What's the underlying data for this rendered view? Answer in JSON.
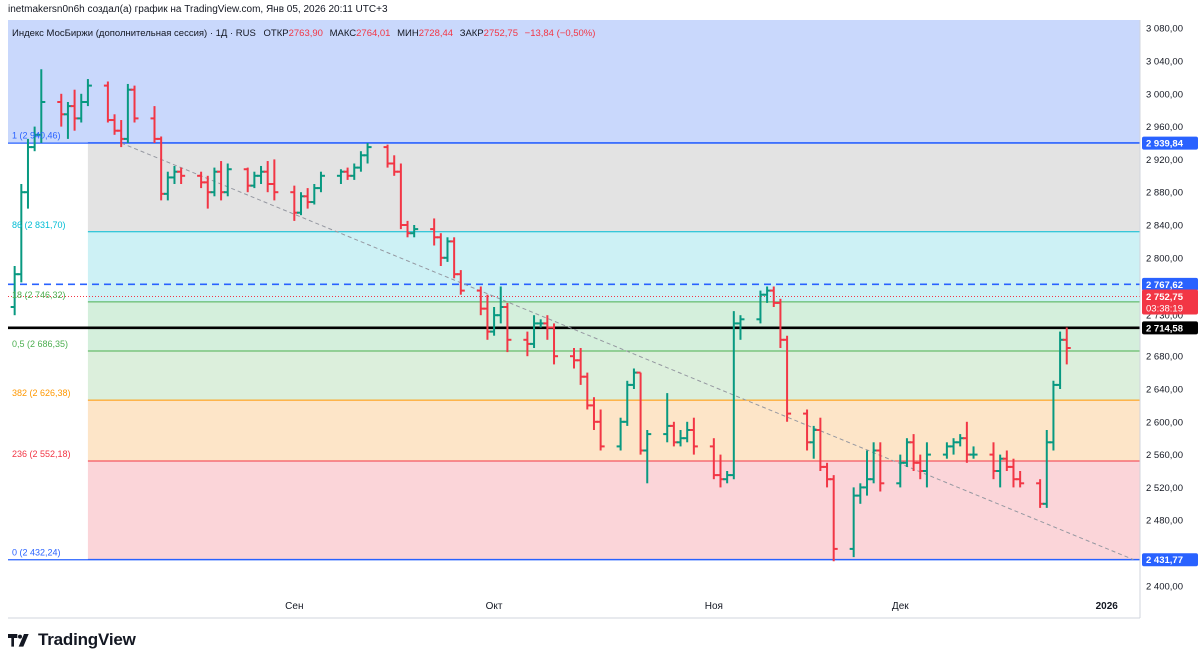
{
  "header": {
    "text": "inetmakersn0n6h создал(а) график на TradingView.com, Янв 05, 2026 20:11 UTC+3"
  },
  "footer": {
    "brand": "TradingView"
  },
  "chart_data": {
    "type": "ohlc",
    "legend": {
      "symbol": "Индекс МосБиржи (дополнительная сессия) · 1Д · RUS",
      "o_label": "ОТКР",
      "o": "2763,90",
      "h_label": "МАКС",
      "h": "2764,01",
      "l_label": "МИН",
      "l": "2728,44",
      "c_label": "ЗАКР",
      "c": "2752,75",
      "change": "−13,84 (−0,50%)"
    },
    "ylim": [
      2390,
      3090
    ],
    "yticks": [
      {
        "v": 3080,
        "label": "3 080,00"
      },
      {
        "v": 3040,
        "label": "3 040,00"
      },
      {
        "v": 3000,
        "label": "3 000,00"
      },
      {
        "v": 2960,
        "label": "2 960,00"
      },
      {
        "v": 2920,
        "label": "2 920,00"
      },
      {
        "v": 2880,
        "label": "2 880,00"
      },
      {
        "v": 2840,
        "label": "2 840,00"
      },
      {
        "v": 2800,
        "label": "2 800,00"
      },
      {
        "v": 2680,
        "label": "2 680,00"
      },
      {
        "v": 2640,
        "label": "2 640,00"
      },
      {
        "v": 2600,
        "label": "2 600,00"
      },
      {
        "v": 2560,
        "label": "2 560,00"
      },
      {
        "v": 2520,
        "label": "2 520,00"
      },
      {
        "v": 2480,
        "label": "2 480,00"
      },
      {
        "v": 2400,
        "label": "2 400,00"
      }
    ],
    "xticks": [
      {
        "date": "2025-09-01",
        "label": "Сен"
      },
      {
        "date": "2025-10-01",
        "label": "Окт"
      },
      {
        "date": "2025-11-03",
        "label": "Ноя"
      },
      {
        "date": "2025-12-01",
        "label": "Дек"
      },
      {
        "date": "2026-01-01",
        "label": "2026"
      }
    ],
    "fib_levels": [
      {
        "ratio": "1",
        "price": 2940.46,
        "label": "1 (2 940,46)",
        "color": "#2962ff",
        "fill": "#c9d8fc"
      },
      {
        "ratio": "0.786",
        "price": 2831.7,
        "label": "86 (2 831,70)",
        "color": "#00bcd4",
        "fill": "#e3e3e3"
      },
      {
        "ratio": "0.618",
        "price": 2746.32,
        "label": "18 (2 746,32)",
        "color": "#4caf50",
        "fill": "#cdf1f5"
      },
      {
        "ratio": "0.5",
        "price": 2686.35,
        "label": "0,5 (2 686,35)",
        "color": "#4caf50",
        "fill": "#d4efdc"
      },
      {
        "ratio": "0.382",
        "price": 2626.38,
        "label": "382 (2 626,38)",
        "color": "#ff9800",
        "fill": "#dcefdc"
      },
      {
        "ratio": "0.236",
        "price": 2552.18,
        "label": "236 (2 552,18)",
        "color": "#f23645",
        "fill": "#fde5c8"
      },
      {
        "ratio": "0",
        "price": 2432.24,
        "label": "0 (2 432,24)",
        "color": "#2962ff",
        "fill": "#fbd5d9"
      }
    ],
    "fib_zone_start": "2025-08-01",
    "horizontal_lines": [
      {
        "price": 2939.84,
        "color": "#2962ff",
        "style": "solid",
        "label": "2 939,84"
      },
      {
        "price": 2767.62,
        "color": "#2962ff",
        "style": "dashed",
        "label": "2 767,62"
      },
      {
        "price": 2714.58,
        "color": "#000000",
        "style": "thick",
        "label": "2 714,58"
      },
      {
        "price": 2431.77,
        "color": "#2962ff",
        "style": "solid",
        "label": "2 431,77"
      }
    ],
    "last_price": {
      "price": 2752.75,
      "label": "2 752,75",
      "timer": "03:38:19",
      "color": "#f23645"
    },
    "hidden_tick": {
      "price": 2730,
      "label": "2 730,00"
    },
    "trendline": {
      "from": [
        "2025-08-06",
        2940
      ],
      "to": [
        "2026-01-05",
        2432
      ]
    },
    "colors": {
      "up": "#089981",
      "down": "#f23645"
    },
    "bars": [
      {
        "d": "2025-07-21",
        "o": 2740,
        "h": 2790,
        "l": 2730,
        "c": 2780
      },
      {
        "d": "2025-07-22",
        "o": 2780,
        "h": 2890,
        "l": 2770,
        "c": 2880
      },
      {
        "d": "2025-07-23",
        "o": 2880,
        "h": 2945,
        "l": 2860,
        "c": 2935
      },
      {
        "d": "2025-07-24",
        "o": 2935,
        "h": 2960,
        "l": 2930,
        "c": 2950
      },
      {
        "d": "2025-07-25",
        "o": 2950,
        "h": 3030,
        "l": 2940,
        "c": 2990
      },
      {
        "d": "2025-07-28",
        "o": 2990,
        "h": 3000,
        "l": 2960,
        "c": 2975
      },
      {
        "d": "2025-07-29",
        "o": 2975,
        "h": 2990,
        "l": 2945,
        "c": 2985
      },
      {
        "d": "2025-07-30",
        "o": 2985,
        "h": 3005,
        "l": 2955,
        "c": 2970
      },
      {
        "d": "2025-07-31",
        "o": 2970,
        "h": 3000,
        "l": 2965,
        "c": 2990
      },
      {
        "d": "2025-08-01",
        "o": 2990,
        "h": 3018,
        "l": 2985,
        "c": 3010
      },
      {
        "d": "2025-08-04",
        "o": 3010,
        "h": 3015,
        "l": 2965,
        "c": 2968
      },
      {
        "d": "2025-08-05",
        "o": 2968,
        "h": 2975,
        "l": 2950,
        "c": 2955
      },
      {
        "d": "2025-08-06",
        "o": 2955,
        "h": 2968,
        "l": 2935,
        "c": 2945
      },
      {
        "d": "2025-08-07",
        "o": 2945,
        "h": 3012,
        "l": 2940,
        "c": 3005
      },
      {
        "d": "2025-08-08",
        "o": 3005,
        "h": 3010,
        "l": 2965,
        "c": 2970
      },
      {
        "d": "2025-08-11",
        "o": 2970,
        "h": 2985,
        "l": 2940,
        "c": 2945
      },
      {
        "d": "2025-08-12",
        "o": 2945,
        "h": 2948,
        "l": 2870,
        "c": 2878
      },
      {
        "d": "2025-08-13",
        "o": 2878,
        "h": 2905,
        "l": 2870,
        "c": 2898
      },
      {
        "d": "2025-08-14",
        "o": 2898,
        "h": 2912,
        "l": 2890,
        "c": 2905
      },
      {
        "d": "2025-08-15",
        "o": 2905,
        "h": 2910,
        "l": 2890,
        "c": 2900
      },
      {
        "d": "2025-08-18",
        "o": 2900,
        "h": 2905,
        "l": 2885,
        "c": 2892
      },
      {
        "d": "2025-08-19",
        "o": 2892,
        "h": 2900,
        "l": 2860,
        "c": 2880
      },
      {
        "d": "2025-08-20",
        "o": 2880,
        "h": 2910,
        "l": 2875,
        "c": 2905
      },
      {
        "d": "2025-08-21",
        "o": 2905,
        "h": 2918,
        "l": 2870,
        "c": 2880
      },
      {
        "d": "2025-08-22",
        "o": 2880,
        "h": 2915,
        "l": 2875,
        "c": 2908
      },
      {
        "d": "2025-08-25",
        "o": 2908,
        "h": 2910,
        "l": 2880,
        "c": 2888
      },
      {
        "d": "2025-08-26",
        "o": 2888,
        "h": 2905,
        "l": 2885,
        "c": 2900
      },
      {
        "d": "2025-08-27",
        "o": 2900,
        "h": 2912,
        "l": 2890,
        "c": 2905
      },
      {
        "d": "2025-08-28",
        "o": 2905,
        "h": 2918,
        "l": 2880,
        "c": 2890
      },
      {
        "d": "2025-08-29",
        "o": 2890,
        "h": 2920,
        "l": 2870,
        "c": 2880
      },
      {
        "d": "2025-09-01",
        "o": 2880,
        "h": 2888,
        "l": 2845,
        "c": 2855
      },
      {
        "d": "2025-09-02",
        "o": 2855,
        "h": 2880,
        "l": 2852,
        "c": 2875
      },
      {
        "d": "2025-09-03",
        "o": 2875,
        "h": 2885,
        "l": 2860,
        "c": 2868
      },
      {
        "d": "2025-09-04",
        "o": 2868,
        "h": 2890,
        "l": 2865,
        "c": 2885
      },
      {
        "d": "2025-09-05",
        "o": 2885,
        "h": 2905,
        "l": 2880,
        "c": 2900
      },
      {
        "d": "2025-09-08",
        "o": 2900,
        "h": 2908,
        "l": 2890,
        "c": 2905
      },
      {
        "d": "2025-09-09",
        "o": 2905,
        "h": 2910,
        "l": 2895,
        "c": 2900
      },
      {
        "d": "2025-09-10",
        "o": 2900,
        "h": 2915,
        "l": 2895,
        "c": 2910
      },
      {
        "d": "2025-09-11",
        "o": 2910,
        "h": 2930,
        "l": 2905,
        "c": 2925
      },
      {
        "d": "2025-09-12",
        "o": 2925,
        "h": 2940,
        "l": 2915,
        "c": 2935
      },
      {
        "d": "2025-09-15",
        "o": 2935,
        "h": 2938,
        "l": 2910,
        "c": 2915
      },
      {
        "d": "2025-09-16",
        "o": 2915,
        "h": 2925,
        "l": 2900,
        "c": 2905
      },
      {
        "d": "2025-09-17",
        "o": 2905,
        "h": 2915,
        "l": 2835,
        "c": 2840
      },
      {
        "d": "2025-09-18",
        "o": 2840,
        "h": 2845,
        "l": 2825,
        "c": 2830
      },
      {
        "d": "2025-09-19",
        "o": 2830,
        "h": 2840,
        "l": 2825,
        "c": 2835
      },
      {
        "d": "2025-09-22",
        "o": 2835,
        "h": 2848,
        "l": 2815,
        "c": 2825
      },
      {
        "d": "2025-09-23",
        "o": 2825,
        "h": 2830,
        "l": 2790,
        "c": 2800
      },
      {
        "d": "2025-09-24",
        "o": 2800,
        "h": 2825,
        "l": 2795,
        "c": 2820
      },
      {
        "d": "2025-09-25",
        "o": 2820,
        "h": 2825,
        "l": 2775,
        "c": 2780
      },
      {
        "d": "2025-09-26",
        "o": 2780,
        "h": 2785,
        "l": 2755,
        "c": 2760
      },
      {
        "d": "2025-09-29",
        "o": 2760,
        "h": 2765,
        "l": 2730,
        "c": 2738
      },
      {
        "d": "2025-09-30",
        "o": 2738,
        "h": 2755,
        "l": 2700,
        "c": 2710
      },
      {
        "d": "2025-10-01",
        "o": 2710,
        "h": 2740,
        "l": 2705,
        "c": 2730
      },
      {
        "d": "2025-10-02",
        "o": 2730,
        "h": 2765,
        "l": 2720,
        "c": 2740
      },
      {
        "d": "2025-10-03",
        "o": 2740,
        "h": 2745,
        "l": 2685,
        "c": 2700
      },
      {
        "d": "2025-10-06",
        "o": 2700,
        "h": 2710,
        "l": 2680,
        "c": 2695
      },
      {
        "d": "2025-10-07",
        "o": 2695,
        "h": 2730,
        "l": 2690,
        "c": 2720
      },
      {
        "d": "2025-10-08",
        "o": 2720,
        "h": 2725,
        "l": 2715,
        "c": 2720
      },
      {
        "d": "2025-10-09",
        "o": 2720,
        "h": 2730,
        "l": 2700,
        "c": 2715
      },
      {
        "d": "2025-10-10",
        "o": 2715,
        "h": 2720,
        "l": 2670,
        "c": 2680
      },
      {
        "d": "2025-10-13",
        "o": 2680,
        "h": 2690,
        "l": 2665,
        "c": 2675
      },
      {
        "d": "2025-10-14",
        "o": 2675,
        "h": 2690,
        "l": 2645,
        "c": 2655
      },
      {
        "d": "2025-10-15",
        "o": 2655,
        "h": 2660,
        "l": 2615,
        "c": 2620
      },
      {
        "d": "2025-10-16",
        "o": 2620,
        "h": 2630,
        "l": 2590,
        "c": 2600
      },
      {
        "d": "2025-10-17",
        "o": 2600,
        "h": 2615,
        "l": 2565,
        "c": 2570
      },
      {
        "d": "2025-10-20",
        "o": 2570,
        "h": 2605,
        "l": 2565,
        "c": 2600
      },
      {
        "d": "2025-10-21",
        "o": 2600,
        "h": 2650,
        "l": 2595,
        "c": 2645
      },
      {
        "d": "2025-10-22",
        "o": 2645,
        "h": 2665,
        "l": 2640,
        "c": 2660
      },
      {
        "d": "2025-10-23",
        "o": 2660,
        "h": 2660,
        "l": 2560,
        "c": 2565
      },
      {
        "d": "2025-10-24",
        "o": 2565,
        "h": 2590,
        "l": 2525,
        "c": 2585
      },
      {
        "d": "2025-10-27",
        "o": 2585,
        "h": 2635,
        "l": 2575,
        "c": 2595
      },
      {
        "d": "2025-10-28",
        "o": 2595,
        "h": 2600,
        "l": 2570,
        "c": 2575
      },
      {
        "d": "2025-10-29",
        "o": 2575,
        "h": 2590,
        "l": 2570,
        "c": 2580
      },
      {
        "d": "2025-10-30",
        "o": 2580,
        "h": 2600,
        "l": 2575,
        "c": 2590
      },
      {
        "d": "2025-10-31",
        "o": 2590,
        "h": 2605,
        "l": 2560,
        "c": 2570
      },
      {
        "d": "2025-11-03",
        "o": 2570,
        "h": 2580,
        "l": 2530,
        "c": 2535
      },
      {
        "d": "2025-11-04",
        "o": 2535,
        "h": 2560,
        "l": 2520,
        "c": 2530
      },
      {
        "d": "2025-11-05",
        "o": 2530,
        "h": 2540,
        "l": 2525,
        "c": 2535
      },
      {
        "d": "2025-11-06",
        "o": 2535,
        "h": 2735,
        "l": 2530,
        "c": 2720
      },
      {
        "d": "2025-11-07",
        "o": 2720,
        "h": 2730,
        "l": 2700,
        "c": 2725
      },
      {
        "d": "2025-11-10",
        "o": 2725,
        "h": 2760,
        "l": 2720,
        "c": 2755
      },
      {
        "d": "2025-11-11",
        "o": 2755,
        "h": 2765,
        "l": 2745,
        "c": 2760
      },
      {
        "d": "2025-11-12",
        "o": 2760,
        "h": 2765,
        "l": 2740,
        "c": 2745
      },
      {
        "d": "2025-11-13",
        "o": 2745,
        "h": 2750,
        "l": 2690,
        "c": 2700
      },
      {
        "d": "2025-11-14",
        "o": 2700,
        "h": 2705,
        "l": 2600,
        "c": 2610
      },
      {
        "d": "2025-11-17",
        "o": 2610,
        "h": 2615,
        "l": 2565,
        "c": 2575
      },
      {
        "d": "2025-11-18",
        "o": 2575,
        "h": 2595,
        "l": 2555,
        "c": 2590
      },
      {
        "d": "2025-11-19",
        "o": 2590,
        "h": 2605,
        "l": 2540,
        "c": 2545
      },
      {
        "d": "2025-11-20",
        "o": 2545,
        "h": 2550,
        "l": 2520,
        "c": 2530
      },
      {
        "d": "2025-11-21",
        "o": 2530,
        "h": 2535,
        "l": 2430,
        "c": 2445
      },
      {
        "d": "2025-11-24",
        "o": 2445,
        "h": 2520,
        "l": 2435,
        "c": 2510
      },
      {
        "d": "2025-11-25",
        "o": 2510,
        "h": 2525,
        "l": 2500,
        "c": 2520
      },
      {
        "d": "2025-11-26",
        "o": 2520,
        "h": 2565,
        "l": 2510,
        "c": 2530
      },
      {
        "d": "2025-11-27",
        "o": 2530,
        "h": 2575,
        "l": 2525,
        "c": 2565
      },
      {
        "d": "2025-11-28",
        "o": 2565,
        "h": 2575,
        "l": 2515,
        "c": 2525
      },
      {
        "d": "2025-12-01",
        "o": 2525,
        "h": 2560,
        "l": 2520,
        "c": 2550
      },
      {
        "d": "2025-12-02",
        "o": 2550,
        "h": 2580,
        "l": 2545,
        "c": 2575
      },
      {
        "d": "2025-12-03",
        "o": 2575,
        "h": 2585,
        "l": 2540,
        "c": 2550
      },
      {
        "d": "2025-12-04",
        "o": 2550,
        "h": 2560,
        "l": 2530,
        "c": 2540
      },
      {
        "d": "2025-12-05",
        "o": 2540,
        "h": 2575,
        "l": 2520,
        "c": 2560
      },
      {
        "d": "2025-12-08",
        "o": 2560,
        "h": 2575,
        "l": 2555,
        "c": 2570
      },
      {
        "d": "2025-12-09",
        "o": 2570,
        "h": 2580,
        "l": 2560,
        "c": 2575
      },
      {
        "d": "2025-12-10",
        "o": 2575,
        "h": 2585,
        "l": 2570,
        "c": 2580
      },
      {
        "d": "2025-12-11",
        "o": 2580,
        "h": 2600,
        "l": 2550,
        "c": 2560
      },
      {
        "d": "2025-12-12",
        "o": 2560,
        "h": 2570,
        "l": 2555,
        "c": 2560
      },
      {
        "d": "2025-12-15",
        "o": 2560,
        "h": 2575,
        "l": 2530,
        "c": 2540
      },
      {
        "d": "2025-12-16",
        "o": 2540,
        "h": 2560,
        "l": 2520,
        "c": 2555
      },
      {
        "d": "2025-12-17",
        "o": 2555,
        "h": 2565,
        "l": 2540,
        "c": 2545
      },
      {
        "d": "2025-12-18",
        "o": 2545,
        "h": 2555,
        "l": 2520,
        "c": 2530
      },
      {
        "d": "2025-12-19",
        "o": 2530,
        "h": 2540,
        "l": 2520,
        "c": 2525
      },
      {
        "d": "2025-12-22",
        "o": 2525,
        "h": 2530,
        "l": 2495,
        "c": 2500
      },
      {
        "d": "2025-12-23",
        "o": 2500,
        "h": 2590,
        "l": 2495,
        "c": 2575
      },
      {
        "d": "2025-12-24",
        "o": 2575,
        "h": 2650,
        "l": 2565,
        "c": 2645
      },
      {
        "d": "2025-12-25",
        "o": 2645,
        "h": 2710,
        "l": 2640,
        "c": 2700
      },
      {
        "d": "2025-12-26",
        "o": 2700,
        "h": 2715,
        "l": 2670,
        "c": 2690
      }
    ]
  }
}
